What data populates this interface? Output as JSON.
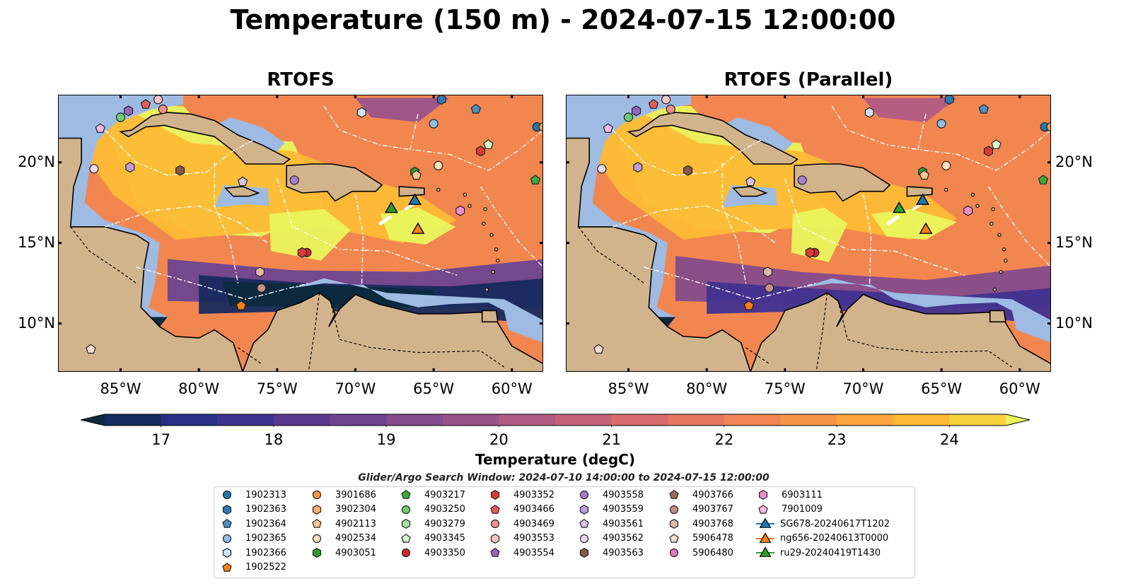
{
  "title": "Temperature (150 m) - 2024-07-15 12:00:00",
  "panels": [
    {
      "title": "RTOFS"
    },
    {
      "title": "RTOFS (Parallel)"
    }
  ],
  "axes": {
    "lon_ticks": [
      "85°W",
      "80°W",
      "75°W",
      "70°W",
      "65°W",
      "60°W"
    ],
    "lon_values": [
      -85,
      -80,
      -75,
      -70,
      -65,
      -60
    ],
    "lat_ticks": [
      "20°N",
      "15°N",
      "10°N"
    ],
    "lat_values": [
      20,
      15,
      10
    ],
    "lon_range": [
      -89,
      -58
    ],
    "lat_range": [
      7,
      24.2
    ]
  },
  "colorbar": {
    "label": "Temperature (degC)",
    "ticks": [
      "17",
      "18",
      "19",
      "20",
      "21",
      "22",
      "23",
      "24"
    ],
    "tick_values": [
      17,
      18,
      19,
      20,
      21,
      22,
      23,
      24
    ],
    "range": [
      16.5,
      24.5
    ],
    "extend": "both",
    "colors": [
      "#0b2a3e",
      "#172a5e",
      "#283085",
      "#40328f",
      "#58398f",
      "#6e4390",
      "#844b8c",
      "#9a528a",
      "#b05b84",
      "#c4637a",
      "#d66c6e",
      "#e57762",
      "#f18555",
      "#f89448",
      "#fca63d",
      "#fdbb35",
      "#f8d23f",
      "#e9f55c"
    ]
  },
  "search_window": "Glider/Argo Search Window: 2024-07-10 14:00:00 to 2024-07-15 12:00:00",
  "legend": {
    "items": [
      {
        "label": "1902313",
        "marker": "circle",
        "color": "#1f77b4"
      },
      {
        "label": "1902363",
        "marker": "hexagon",
        "color": "#2b7bb9"
      },
      {
        "label": "1902364",
        "marker": "pentagon",
        "color": "#4a90c8"
      },
      {
        "label": "1902365",
        "marker": "circle",
        "color": "#8ec0e8"
      },
      {
        "label": "1902366",
        "marker": "hexagon",
        "color": "#cde5f7"
      },
      {
        "label": "1902522",
        "marker": "pentagon",
        "color": "#ff7f0e"
      },
      {
        "label": "3901686",
        "marker": "circle",
        "color": "#ff9a3c"
      },
      {
        "label": "3902304",
        "marker": "hexagon",
        "color": "#ffb06a"
      },
      {
        "label": "4902113",
        "marker": "pentagon",
        "color": "#ffc890"
      },
      {
        "label": "4902534",
        "marker": "circle",
        "color": "#ffe0c0"
      },
      {
        "label": "4903051",
        "marker": "hexagon",
        "color": "#2ca02c"
      },
      {
        "label": "4903217",
        "marker": "pentagon",
        "color": "#3cab3c"
      },
      {
        "label": "4903250",
        "marker": "circle",
        "color": "#6dcf6d"
      },
      {
        "label": "4903279",
        "marker": "hexagon",
        "color": "#a5e3a5"
      },
      {
        "label": "4903345",
        "marker": "pentagon",
        "color": "#d8f5d0"
      },
      {
        "label": "4903350",
        "marker": "circle",
        "color": "#d62728"
      },
      {
        "label": "4903352",
        "marker": "hexagon",
        "color": "#dd3a3a"
      },
      {
        "label": "4903466",
        "marker": "pentagon",
        "color": "#e65b5b"
      },
      {
        "label": "4903469",
        "marker": "circle",
        "color": "#f08f8f"
      },
      {
        "label": "4903553",
        "marker": "hexagon",
        "color": "#f7c6c4"
      },
      {
        "label": "4903554",
        "marker": "pentagon",
        "color": "#9467bd"
      },
      {
        "label": "4903558",
        "marker": "circle",
        "color": "#a77fd0"
      },
      {
        "label": "4903559",
        "marker": "hexagon",
        "color": "#bc9de0"
      },
      {
        "label": "4903561",
        "marker": "pentagon",
        "color": "#d6c2ef"
      },
      {
        "label": "4903562",
        "marker": "circle",
        "color": "#ecdcf7"
      },
      {
        "label": "4903563",
        "marker": "hexagon",
        "color": "#8c564b"
      },
      {
        "label": "4903766",
        "marker": "pentagon",
        "color": "#a06a5c"
      },
      {
        "label": "4903767",
        "marker": "circle",
        "color": "#c4907f"
      },
      {
        "label": "4903768",
        "marker": "hexagon",
        "color": "#e2b8a8"
      },
      {
        "label": "5906478",
        "marker": "pentagon",
        "color": "#f6dcd2"
      },
      {
        "label": "5906480",
        "marker": "circle",
        "color": "#e377c2"
      },
      {
        "label": "6903111",
        "marker": "hexagon",
        "color": "#ec8fd0"
      },
      {
        "label": "7901009",
        "marker": "pentagon",
        "color": "#f5b8e4"
      },
      {
        "label": "SG678-20240617T1202",
        "marker": "triangle-line",
        "color": "#1f77b4"
      },
      {
        "label": "ng656-20240613T0000",
        "marker": "triangle-line",
        "color": "#ff7f0e"
      },
      {
        "label": "ru29-20240419T1430",
        "marker": "triangle-line",
        "color": "#2ca02c"
      }
    ]
  },
  "floats": [
    {
      "lon": -85.0,
      "lat": 22.8,
      "marker": "circle",
      "color": "#6dcf6d"
    },
    {
      "lon": -84.5,
      "lat": 23.2,
      "marker": "hexagon",
      "color": "#9467bd"
    },
    {
      "lon": -86.3,
      "lat": 22.1,
      "marker": "pentagon",
      "color": "#f5b8e4"
    },
    {
      "lon": -83.4,
      "lat": 23.6,
      "marker": "pentagon",
      "color": "#e65b5b"
    },
    {
      "lon": -82.6,
      "lat": 23.9,
      "marker": "circle",
      "color": "#f7c6c4"
    },
    {
      "lon": -82.3,
      "lat": 23.3,
      "marker": "circle",
      "color": "#f08f8f"
    },
    {
      "lon": -86.7,
      "lat": 19.6,
      "marker": "circle",
      "color": "#ecdcf7"
    },
    {
      "lon": -84.4,
      "lat": 19.7,
      "marker": "hexagon",
      "color": "#bc9de0"
    },
    {
      "lon": -81.2,
      "lat": 19.5,
      "marker": "hexagon",
      "color": "#8c564b"
    },
    {
      "lon": -77.2,
      "lat": 18.8,
      "marker": "pentagon",
      "color": "#d6c2ef"
    },
    {
      "lon": -73.9,
      "lat": 18.9,
      "marker": "circle",
      "color": "#a77fd0"
    },
    {
      "lon": -69.6,
      "lat": 23.1,
      "marker": "hexagon",
      "color": "#cde5f7"
    },
    {
      "lon": -65.0,
      "lat": 22.4,
      "marker": "circle",
      "color": "#8ec0e8"
    },
    {
      "lon": -64.5,
      "lat": 23.9,
      "marker": "hexagon",
      "color": "#2b7bb9"
    },
    {
      "lon": -62.3,
      "lat": 23.3,
      "marker": "pentagon",
      "color": "#4a90c8"
    },
    {
      "lon": -58.4,
      "lat": 22.2,
      "marker": "circle",
      "color": "#1f77b4"
    },
    {
      "lon": -58.0,
      "lat": 22.2,
      "marker": "circle",
      "color": "#ff9a3c"
    },
    {
      "lon": -62.0,
      "lat": 20.7,
      "marker": "hexagon",
      "color": "#dd3a3a"
    },
    {
      "lon": -61.5,
      "lat": 21.1,
      "marker": "pentagon",
      "color": "#d8f5d0"
    },
    {
      "lon": -64.7,
      "lat": 19.8,
      "marker": "circle",
      "color": "#ffe0c0"
    },
    {
      "lon": -66.2,
      "lat": 19.4,
      "marker": "hexagon",
      "color": "#2ca02c"
    },
    {
      "lon": -66.1,
      "lat": 19.2,
      "marker": "pentagon",
      "color": "#ffc890"
    },
    {
      "lon": -58.5,
      "lat": 18.9,
      "marker": "pentagon",
      "color": "#3cab3c"
    },
    {
      "lon": -63.3,
      "lat": 17.0,
      "marker": "hexagon",
      "color": "#ec8fd0"
    },
    {
      "lon": -73.1,
      "lat": 14.4,
      "marker": "circle",
      "color": "#d62728"
    },
    {
      "lon": -73.4,
      "lat": 14.4,
      "marker": "hexagon",
      "color": "#dd3a3a"
    },
    {
      "lon": -76.1,
      "lat": 13.2,
      "marker": "hexagon",
      "color": "#e2b8a8"
    },
    {
      "lon": -76.0,
      "lat": 12.2,
      "marker": "circle",
      "color": "#c4907f"
    },
    {
      "lon": -77.3,
      "lat": 11.1,
      "marker": "pentagon",
      "color": "#ff7f0e"
    },
    {
      "lon": -86.9,
      "lat": 8.4,
      "marker": "pentagon",
      "color": "#f6dcd2"
    }
  ],
  "gliders": [
    {
      "lon": -67.7,
      "lat": 17.1,
      "color": "#2ca02c"
    },
    {
      "lon": -66.2,
      "lat": 17.6,
      "color": "#1f77b4"
    },
    {
      "lon": -66.0,
      "lat": 15.8,
      "color": "#ff7f0e"
    }
  ]
}
